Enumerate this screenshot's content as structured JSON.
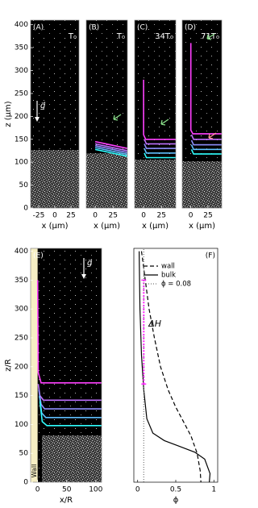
{
  "chart_data": [
    {
      "type": "image",
      "panel": "(A)",
      "time": "T₀",
      "background": "#000000",
      "xlim": [
        -37.5,
        37.5
      ],
      "ylim": [
        0,
        410
      ],
      "xticks": [
        -25,
        0,
        25
      ],
      "yticks": [
        0,
        50,
        100,
        150,
        200,
        250,
        300,
        350,
        400
      ],
      "xlabel": "x (μm)",
      "ylabel": "z (μm)",
      "gravity_label": "g⃗",
      "series": []
    },
    {
      "type": "image",
      "panel": "(B)",
      "time": "T₀",
      "background": "#000000",
      "xlim": [
        -12.5,
        45
      ],
      "ylim": [
        0,
        410
      ],
      "xticks": [
        0,
        25
      ],
      "xlabel": "x (μm)",
      "series": [
        {
          "color": "#ff40ff",
          "x": [
            0,
            45
          ],
          "values": [
            145,
            130
          ]
        },
        {
          "color": "#c070ff",
          "x": [
            0,
            45
          ],
          "values": [
            140,
            125
          ]
        },
        {
          "color": "#9090ff",
          "x": [
            0,
            45
          ],
          "values": [
            136,
            121
          ]
        },
        {
          "color": "#60c0ff",
          "x": [
            0,
            45
          ],
          "values": [
            132,
            117
          ]
        },
        {
          "color": "#30ffff",
          "x": [
            0,
            45
          ],
          "values": [
            128,
            113
          ]
        }
      ]
    },
    {
      "type": "image",
      "panel": "(C)",
      "time": "34T₀",
      "background": "#000000",
      "xlim": [
        -12.5,
        45
      ],
      "ylim": [
        0,
        410
      ],
      "xticks": [
        0,
        25
      ],
      "xlabel": "x (μm)",
      "series": [
        {
          "color": "#ff40ff",
          "x": [
            0,
            0,
            3,
            45
          ],
          "values": [
            280,
            160,
            150,
            150
          ]
        },
        {
          "color": "#c070ff",
          "x": [
            1,
            4,
            45
          ],
          "values": [
            150,
            140,
            140
          ]
        },
        {
          "color": "#9090ff",
          "x": [
            1,
            4,
            45
          ],
          "values": [
            140,
            130,
            130
          ]
        },
        {
          "color": "#60c0ff",
          "x": [
            1,
            4,
            45
          ],
          "values": [
            130,
            120,
            120
          ]
        },
        {
          "color": "#30ffff",
          "x": [
            1,
            4,
            45
          ],
          "values": [
            120,
            110,
            110
          ]
        }
      ]
    },
    {
      "type": "image",
      "panel": "(D)",
      "time": "71T₀",
      "background": "#000000",
      "xlim": [
        -12.5,
        45
      ],
      "ylim": [
        0,
        410
      ],
      "xticks": [
        0,
        25
      ],
      "xlabel": "x (μm)",
      "series": [
        {
          "color": "#ff40ff",
          "x": [
            0,
            0,
            3,
            45
          ],
          "values": [
            360,
            170,
            162,
            162
          ]
        },
        {
          "color": "#c070ff",
          "x": [
            1,
            4,
            45
          ],
          "values": [
            160,
            150,
            150
          ]
        },
        {
          "color": "#9090ff",
          "x": [
            1,
            4,
            45
          ],
          "values": [
            148,
            138,
            138
          ]
        },
        {
          "color": "#60c0ff",
          "x": [
            1,
            4,
            45
          ],
          "values": [
            138,
            128,
            128
          ]
        },
        {
          "color": "#30ffff",
          "x": [
            1,
            4,
            45
          ],
          "values": [
            128,
            118,
            118
          ]
        }
      ]
    },
    {
      "type": "image",
      "panel": "(E)",
      "background": "#000000",
      "xlim": [
        -12,
        110
      ],
      "ylim": [
        0,
        405
      ],
      "xticks": [
        0,
        50,
        100
      ],
      "yticks": [
        0,
        50,
        100,
        150,
        200,
        250,
        300,
        350,
        400
      ],
      "xlabel": "x/R",
      "ylabel": "z/R",
      "gravity_label": "g⃗",
      "wall": {
        "label": "Wall",
        "x": 0,
        "color": "#f6efc4"
      },
      "series": [
        {
          "color": "#ff40ff",
          "x": [
            0,
            1,
            6,
            110
          ],
          "values": [
            350,
            190,
            172,
            172
          ]
        },
        {
          "color": "#c070ff",
          "x": [
            1,
            4,
            10,
            110
          ],
          "values": [
            170,
            150,
            142,
            142
          ]
        },
        {
          "color": "#9090ff",
          "x": [
            2,
            6,
            12,
            110
          ],
          "values": [
            160,
            135,
            127,
            127
          ]
        },
        {
          "color": "#60c0ff",
          "x": [
            3,
            7,
            14,
            110
          ],
          "values": [
            150,
            120,
            112,
            112
          ]
        },
        {
          "color": "#30ffff",
          "x": [
            4,
            8,
            16,
            110
          ],
          "values": [
            140,
            105,
            98,
            98
          ]
        }
      ]
    },
    {
      "type": "line",
      "panel": "(F)",
      "background": "#ffffff",
      "xlim": [
        -0.05,
        1.05
      ],
      "ylim": [
        0,
        405
      ],
      "xticks": [
        0,
        0.5,
        1
      ],
      "xlabel": "ϕ",
      "series": [
        {
          "name": "wall",
          "color": "#000000",
          "dash": "5,3",
          "x": [
            0.05,
            0.1,
            0.15,
            0.22,
            0.3,
            0.4,
            0.5,
            0.6,
            0.7,
            0.78,
            0.82,
            0.83
          ],
          "values": [
            400,
            350,
            300,
            250,
            200,
            160,
            130,
            105,
            80,
            50,
            20,
            0
          ]
        },
        {
          "name": "bulk",
          "color": "#000000",
          "dash": "",
          "x": [
            0.02,
            0.03,
            0.05,
            0.08,
            0.12,
            0.2,
            0.35,
            0.55,
            0.75,
            0.88,
            0.95,
            0.94
          ],
          "values": [
            400,
            300,
            220,
            160,
            110,
            85,
            72,
            62,
            52,
            40,
            15,
            0
          ]
        },
        {
          "name": "ϕ = 0.08",
          "color": "#777777",
          "dash": "1,2",
          "x": [
            0.08,
            0.08
          ],
          "values": [
            0,
            405
          ]
        }
      ],
      "delta_h": {
        "label": "ΔH",
        "x": 0.08,
        "z": [
          170,
          350
        ],
        "color": "#ff20ff"
      }
    }
  ]
}
